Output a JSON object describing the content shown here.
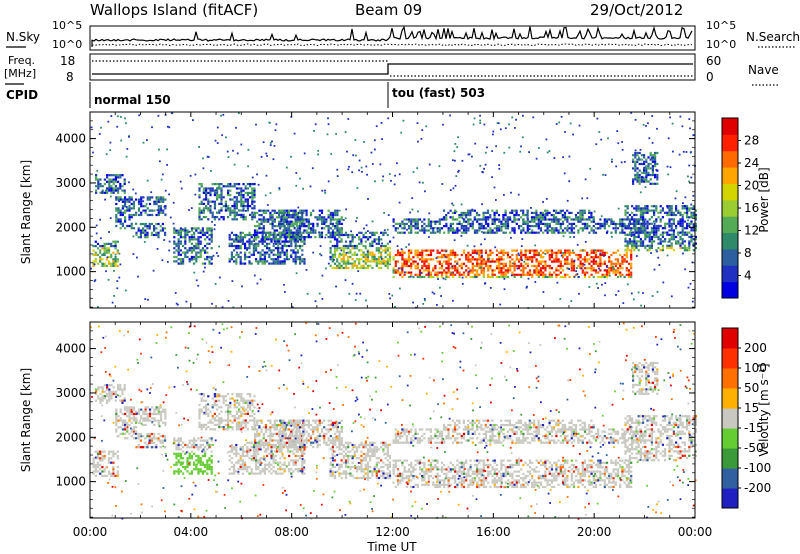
{
  "header": {
    "station": "Wallops Island (fitACF)",
    "beam": "Beam 09",
    "date": "29/Oct/2012"
  },
  "noise_panel": {
    "left_label": "N.Sky",
    "right_label": "N.Search",
    "left_ticks": [
      "10^5",
      "10^0"
    ],
    "right_ticks": [
      "10^5",
      "10^0"
    ]
  },
  "freq_panel": {
    "left_label_1": "Freq.",
    "left_label_2": "[MHz]",
    "right_label": "Nave",
    "left_ticks": [
      "18",
      "8"
    ],
    "right_ticks": [
      "60",
      "0"
    ]
  },
  "cpid_panel": {
    "label": "CPID",
    "segments": [
      {
        "name": "normal 150",
        "start_hour": 0
      },
      {
        "name": "tou (fast) 503",
        "start_hour": 12
      }
    ]
  },
  "chart_data": [
    {
      "type": "heatmap",
      "xlabel": "",
      "ylabel": "Slant Range [km]",
      "x_range_hours": [
        0,
        24
      ],
      "ylim": [
        180,
        4600
      ],
      "y_ticks": [
        1000,
        2000,
        3000,
        4000
      ],
      "colorbar": {
        "label": "Power [dB]",
        "ticks": [
          "28",
          "24",
          "20",
          "16",
          "12",
          "8",
          "4"
        ],
        "colors": [
          "#0000e0",
          "#2030c0",
          "#2b5fa0",
          "#2f8a6a",
          "#55aa55",
          "#9acd32",
          "#d4d400",
          "#ffa500",
          "#ff6a00",
          "#ff2000",
          "#e00000"
        ]
      }
    },
    {
      "type": "heatmap",
      "xlabel": "",
      "ylabel": "Slant Range [km]",
      "x_range_hours": [
        0,
        24
      ],
      "ylim": [
        180,
        4600
      ],
      "y_ticks": [
        1000,
        2000,
        3000,
        4000
      ],
      "colorbar": {
        "label": "Velocity [m s⁻¹]",
        "ticks": [
          "200",
          "100",
          "50",
          "15",
          "-15",
          "-50",
          "-100",
          "-200"
        ],
        "colors": [
          "#2020c0",
          "#3060a0",
          "#3a9a3a",
          "#66cc33",
          "#c8c8c0",
          "#ffb000",
          "#ff7000",
          "#ff3000",
          "#e00000"
        ]
      }
    }
  ],
  "x_axis": {
    "ticks": [
      "00:00",
      "04:00",
      "08:00",
      "12:00",
      "16:00",
      "20:00",
      "00:00"
    ],
    "label": "Time UT"
  }
}
